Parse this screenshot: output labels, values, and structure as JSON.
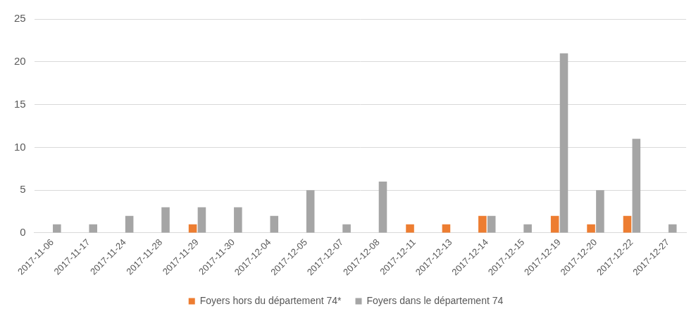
{
  "chart_data": {
    "type": "bar",
    "categories": [
      "2017-11-06",
      "2017-11-17",
      "2017-11-24",
      "2017-11-28",
      "2017-11-29",
      "2017-11-30",
      "2017-12-04",
      "2017-12-05",
      "2017-12-07",
      "2017-12-08",
      "2017-12-11",
      "2017-12-13",
      "2017-12-14",
      "2017-12-15",
      "2017-12-19",
      "2017-12-20",
      "2017-12-22",
      "2017-12-27"
    ],
    "series": [
      {
        "name": "Foyers hors du département 74*",
        "color": "#ed7d31",
        "values": [
          0,
          0,
          0,
          0,
          1,
          0,
          0,
          0,
          0,
          0,
          1,
          1,
          2,
          0,
          2,
          1,
          2,
          0
        ]
      },
      {
        "name": "Foyers dans le département 74",
        "color": "#a5a5a5",
        "values": [
          1,
          1,
          2,
          3,
          3,
          3,
          2,
          5,
          1,
          6,
          0,
          0,
          2,
          1,
          21,
          5,
          11,
          1
        ]
      }
    ],
    "ylim": [
      0,
      25
    ],
    "yticks": [
      0,
      5,
      10,
      15,
      20,
      25
    ],
    "grid": true,
    "legend": "bottom"
  }
}
